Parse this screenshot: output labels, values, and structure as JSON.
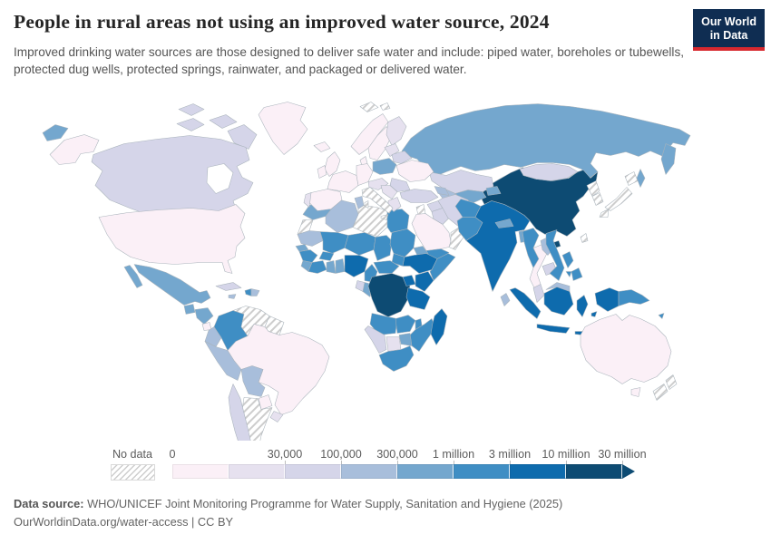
{
  "header": {
    "logo": {
      "line1": "Our World",
      "line2": "in Data",
      "bg_color": "#0f2d52",
      "accent_color": "#d7282f"
    }
  },
  "chart_data": {
    "type": "choropleth-map",
    "title": "People in rural areas not using an improved water source, 2024",
    "subtitle": "Improved drinking water sources are those designed to deliver safe water and include: piped water, boreholes or tubewells, protected dug wells, protected springs, rainwater, and packaged or delivered water.",
    "no_data_label": "No data",
    "tick_labels": [
      "0",
      "30,000",
      "100,000",
      "300,000",
      "1 million",
      "3 million",
      "10 million",
      "30 million"
    ],
    "legend_bins": [
      {
        "range": "0–30,000",
        "color": "#fbf0f7"
      },
      {
        "range": "30,000–100,000",
        "color": "#e6e1ef"
      },
      {
        "range": "100,000–300,000",
        "color": "#d5d5e9"
      },
      {
        "range": "300,000–1 million",
        "color": "#a8bedb"
      },
      {
        "range": "1–3 million",
        "color": "#74a7ce"
      },
      {
        "range": "3–10 million",
        "color": "#3f8ec4"
      },
      {
        "range": "10–30 million",
        "color": "#0e6bad"
      },
      {
        "range": "30 million+",
        "color": "#0d4b73"
      }
    ],
    "no_data_hatch_color": "#cdcdcd",
    "regions": [
      {
        "id": "russia",
        "bin": 5
      },
      {
        "id": "russia-west-fragment",
        "bin": 5
      },
      {
        "id": "kamchatka",
        "bin": 5
      },
      {
        "id": "sakhalin",
        "bin": 5
      },
      {
        "id": "canada",
        "bin": 3
      },
      {
        "id": "canada-arctic-1",
        "bin": 3
      },
      {
        "id": "canada-arctic-2",
        "bin": 3
      },
      {
        "id": "canada-arctic-3",
        "bin": 3
      },
      {
        "id": "canada-baffin",
        "bin": 3
      },
      {
        "id": "alaska",
        "bin": 1
      },
      {
        "id": "greenland",
        "bin": 1
      },
      {
        "id": "usa",
        "bin": 1
      },
      {
        "id": "mexico",
        "bin": 5
      },
      {
        "id": "guatemala",
        "bin": 5
      },
      {
        "id": "honduras-nicaragua",
        "bin": 5
      },
      {
        "id": "costa-rica",
        "bin": 1
      },
      {
        "id": "panama",
        "bin": 4
      },
      {
        "id": "cuba",
        "bin": 3
      },
      {
        "id": "haiti",
        "bin": 6
      },
      {
        "id": "dominican-republic",
        "bin": 4
      },
      {
        "id": "jamaica",
        "bin": 4
      },
      {
        "id": "colombia",
        "bin": 6
      },
      {
        "id": "venezuela",
        "bin": "no-data"
      },
      {
        "id": "guyanas",
        "bin": "no-data"
      },
      {
        "id": "ecuador",
        "bin": 4
      },
      {
        "id": "peru",
        "bin": 4
      },
      {
        "id": "brazil",
        "bin": 1
      },
      {
        "id": "bolivia",
        "bin": 4
      },
      {
        "id": "paraguay",
        "bin": 1
      },
      {
        "id": "uruguay",
        "bin": 2
      },
      {
        "id": "chile",
        "bin": 3
      },
      {
        "id": "argentina",
        "bin": "no-data"
      },
      {
        "id": "iceland",
        "bin": 1
      },
      {
        "id": "united-kingdom",
        "bin": 1
      },
      {
        "id": "ireland",
        "bin": 1
      },
      {
        "id": "norway",
        "bin": 1
      },
      {
        "id": "sweden",
        "bin": 1
      },
      {
        "id": "finland",
        "bin": 2
      },
      {
        "id": "denmark",
        "bin": 1
      },
      {
        "id": "spain",
        "bin": 1
      },
      {
        "id": "portugal",
        "bin": 2
      },
      {
        "id": "france",
        "bin": 1
      },
      {
        "id": "germany",
        "bin": 1
      },
      {
        "id": "central-europe",
        "bin": 2
      },
      {
        "id": "italy",
        "bin": "no-data"
      },
      {
        "id": "sicily",
        "bin": "no-data"
      },
      {
        "id": "sardinia",
        "bin": "no-data"
      },
      {
        "id": "poland",
        "bin": 5
      },
      {
        "id": "baltics",
        "bin": 2
      },
      {
        "id": "belarus",
        "bin": 3
      },
      {
        "id": "ukraine",
        "bin": 1
      },
      {
        "id": "romania",
        "bin": 3
      },
      {
        "id": "balkans",
        "bin": 2
      },
      {
        "id": "greece",
        "bin": 2
      },
      {
        "id": "svalbard",
        "bin": "no-data"
      },
      {
        "id": "kazakhstan",
        "bin": 3
      },
      {
        "id": "uzbekistan",
        "bin": 5
      },
      {
        "id": "turkmenistan",
        "bin": 4
      },
      {
        "id": "kyrgyzstan-tajikistan",
        "bin": 5
      },
      {
        "id": "caucasus",
        "bin": 4
      },
      {
        "id": "turkey",
        "bin": 3
      },
      {
        "id": "syria",
        "bin": 3
      },
      {
        "id": "iraq",
        "bin": 3
      },
      {
        "id": "iran",
        "bin": 3
      },
      {
        "id": "saudi-arabia",
        "bin": 1
      },
      {
        "id": "yemen",
        "bin": 6
      },
      {
        "id": "oman",
        "bin": "no-data"
      },
      {
        "id": "jordan-israel",
        "bin": "no-data"
      },
      {
        "id": "morocco",
        "bin": 5
      },
      {
        "id": "western-sahara",
        "bin": "no-data"
      },
      {
        "id": "algeria",
        "bin": 4
      },
      {
        "id": "tunisia",
        "bin": 4
      },
      {
        "id": "libya",
        "bin": "no-data"
      },
      {
        "id": "egypt",
        "bin": 6
      },
      {
        "id": "mauritania",
        "bin": 4
      },
      {
        "id": "mali",
        "bin": 6
      },
      {
        "id": "niger",
        "bin": 6
      },
      {
        "id": "chad",
        "bin": 6
      },
      {
        "id": "sudan",
        "bin": 6
      },
      {
        "id": "south-sudan",
        "bin": 6
      },
      {
        "id": "eritrea",
        "bin": 5
      },
      {
        "id": "ethiopia",
        "bin": 7
      },
      {
        "id": "somalia",
        "bin": 6
      },
      {
        "id": "senegal",
        "bin": 5
      },
      {
        "id": "guinea",
        "bin": 6
      },
      {
        "id": "sierra-leone-liberia",
        "bin": 5
      },
      {
        "id": "ivory-coast",
        "bin": 6
      },
      {
        "id": "burkina-faso",
        "bin": 6
      },
      {
        "id": "ghana",
        "bin": 5
      },
      {
        "id": "benin-togo",
        "bin": 5
      },
      {
        "id": "nigeria",
        "bin": 7
      },
      {
        "id": "cameroon",
        "bin": 6
      },
      {
        "id": "central-african-republic",
        "bin": 6
      },
      {
        "id": "gabon",
        "bin": 3
      },
      {
        "id": "congo",
        "bin": 5
      },
      {
        "id": "dr-congo",
        "bin": 8
      },
      {
        "id": "uganda",
        "bin": 7
      },
      {
        "id": "kenya",
        "bin": 7
      },
      {
        "id": "tanzania",
        "bin": 7
      },
      {
        "id": "angola",
        "bin": 6
      },
      {
        "id": "zambia",
        "bin": 6
      },
      {
        "id": "malawi",
        "bin": 6
      },
      {
        "id": "mozambique",
        "bin": 6
      },
      {
        "id": "zimbabwe",
        "bin": 5
      },
      {
        "id": "botswana",
        "bin": 2
      },
      {
        "id": "namibia",
        "bin": 3
      },
      {
        "id": "south-africa",
        "bin": 6
      },
      {
        "id": "madagascar",
        "bin": 7
      },
      {
        "id": "afghanistan",
        "bin": 6
      },
      {
        "id": "pakistan",
        "bin": 6
      },
      {
        "id": "india",
        "bin": 7
      },
      {
        "id": "nepal",
        "bin": 5
      },
      {
        "id": "bangladesh",
        "bin": 5
      },
      {
        "id": "sri-lanka",
        "bin": 4
      },
      {
        "id": "myanmar",
        "bin": 6
      },
      {
        "id": "thailand",
        "bin": 1
      },
      {
        "id": "laos",
        "bin": 4
      },
      {
        "id": "cambodia",
        "bin": 3
      },
      {
        "id": "vietnam",
        "bin": 6
      },
      {
        "id": "malaysia-peninsula",
        "bin": 3
      },
      {
        "id": "sumatra",
        "bin": 7
      },
      {
        "id": "borneo-indonesia",
        "bin": 7
      },
      {
        "id": "borneo-malaysia",
        "bin": 4
      },
      {
        "id": "java",
        "bin": 7
      },
      {
        "id": "sulawesi",
        "bin": 7
      },
      {
        "id": "lesser-sunda",
        "bin": 7
      },
      {
        "id": "maluku",
        "bin": 7
      },
      {
        "id": "philippines-luzon",
        "bin": 6
      },
      {
        "id": "philippines-mindanao",
        "bin": 6
      },
      {
        "id": "taiwan",
        "bin": "no-data"
      },
      {
        "id": "china",
        "bin": 8
      },
      {
        "id": "hainan",
        "bin": 8
      },
      {
        "id": "mongolia",
        "bin": 3
      },
      {
        "id": "north-korea",
        "bin": "no-data"
      },
      {
        "id": "south-korea",
        "bin": "no-data"
      },
      {
        "id": "japan-hokkaido",
        "bin": "no-data"
      },
      {
        "id": "japan-honshu",
        "bin": "no-data"
      },
      {
        "id": "japan-kyushu",
        "bin": "no-data"
      },
      {
        "id": "new-guinea-west",
        "bin": 7
      },
      {
        "id": "papua-new-guinea",
        "bin": 6
      },
      {
        "id": "solomon-islands",
        "bin": 6
      },
      {
        "id": "australia",
        "bin": 1
      },
      {
        "id": "tasmania",
        "bin": 1
      },
      {
        "id": "new-zealand-north",
        "bin": "no-data"
      },
      {
        "id": "new-zealand-south",
        "bin": "no-data"
      }
    ]
  },
  "footer": {
    "source_label": "Data source:",
    "source_text": " WHO/UNICEF Joint Monitoring Programme for Water Supply, Sanitation and Hygiene (2025)",
    "link_text": "OurWorldinData.org/water-access | CC BY"
  }
}
